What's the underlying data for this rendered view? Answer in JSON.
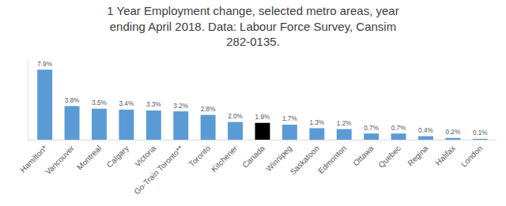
{
  "chart_data": {
    "type": "bar",
    "title": "1 Year Employment change, selected metro areas, year\nending April 2018. Data: Labour Force Survey, Cansim\n282-0135.",
    "categories": [
      "Hamilton*",
      "Vancouver",
      "Montreal",
      "Calgary",
      "Victoria",
      "Go-Train Toronto**",
      "Toronto",
      "Kitchener",
      "Canada",
      "Winnipeg",
      "Saskatoon",
      "Edmonton",
      "Ottawa",
      "Quebec",
      "Regina",
      "Halifax",
      "London"
    ],
    "values": [
      7.9,
      3.8,
      3.5,
      3.4,
      3.3,
      3.2,
      2.8,
      2.0,
      1.9,
      1.7,
      1.3,
      1.2,
      0.7,
      0.7,
      0.4,
      0.2,
      0.1
    ],
    "value_labels": [
      "7.9%",
      "3.8%",
      "3.5%",
      "3.4%",
      "3.3%",
      "3.2%",
      "2.8%",
      "2.0%",
      "1.9%",
      "1.7%",
      "1.3%",
      "1.2%",
      "0.7%",
      "0.7%",
      "0.4%",
      "0.2%",
      "0.1%"
    ],
    "colors": [
      "#5b9bd5",
      "#5b9bd5",
      "#5b9bd5",
      "#5b9bd5",
      "#5b9bd5",
      "#5b9bd5",
      "#5b9bd5",
      "#5b9bd5",
      "#000000",
      "#5b9bd5",
      "#5b9bd5",
      "#5b9bd5",
      "#5b9bd5",
      "#5b9bd5",
      "#5b9bd5",
      "#5b9bd5",
      "#5b9bd5"
    ],
    "ylim": [
      0,
      9
    ],
    "data_labels": true,
    "tick_labels": "x",
    "grid": false
  }
}
